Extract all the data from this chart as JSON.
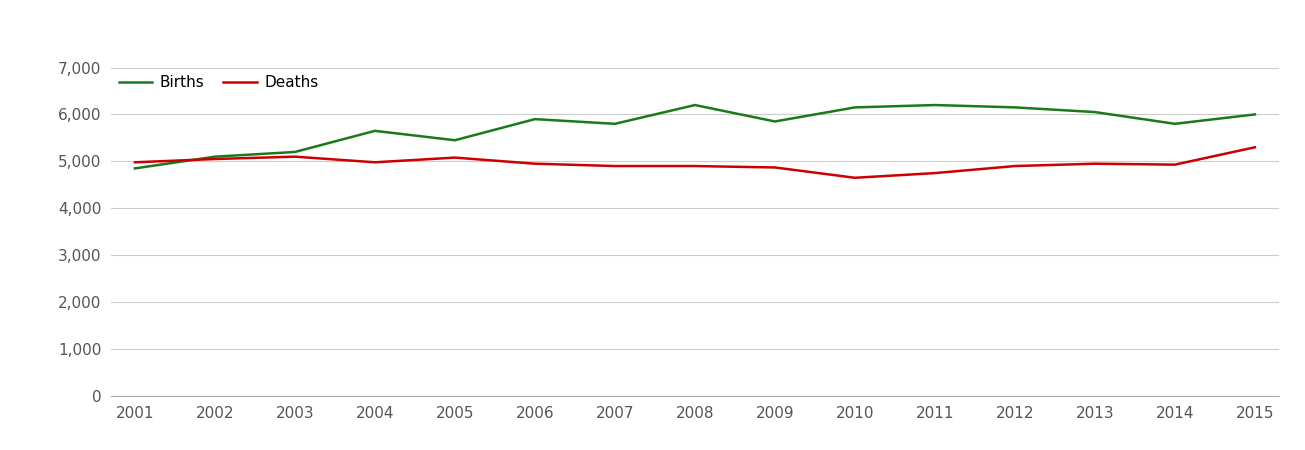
{
  "years": [
    2001,
    2002,
    2003,
    2004,
    2005,
    2006,
    2007,
    2008,
    2009,
    2010,
    2011,
    2012,
    2013,
    2014,
    2015
  ],
  "births": [
    4850,
    5100,
    5200,
    5650,
    5450,
    5900,
    5800,
    6200,
    5850,
    6150,
    6200,
    6150,
    6050,
    5800,
    6000
  ],
  "deaths": [
    4980,
    5050,
    5100,
    4980,
    5080,
    4950,
    4900,
    4900,
    4870,
    4650,
    4750,
    4900,
    4950,
    4930,
    5300
  ],
  "births_color": "#1a7a1a",
  "deaths_color": "#cc0000",
  "background_color": "#ffffff",
  "grid_color": "#cccccc",
  "line_width": 1.8,
  "ylim": [
    0,
    7000
  ],
  "yticks": [
    0,
    1000,
    2000,
    3000,
    4000,
    5000,
    6000,
    7000
  ],
  "legend_births": "Births",
  "legend_deaths": "Deaths",
  "tick_color": "#555555",
  "tick_fontsize": 11
}
